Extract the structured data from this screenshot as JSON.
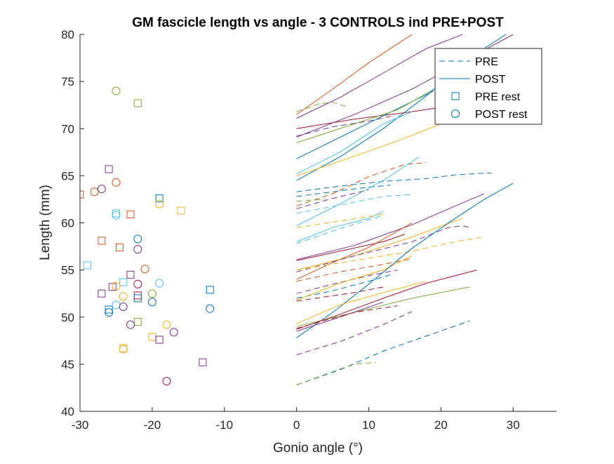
{
  "chart_data": {
    "type": "scatter",
    "title": "GM fascicle length vs angle - 3 CONTROLS ind PRE+POST",
    "xlabel": "Gonio angle (°)",
    "ylabel": "Length (mm)",
    "xlim": [
      -30,
      36
    ],
    "ylim": [
      40,
      80
    ],
    "xticks": [
      -30,
      -20,
      -10,
      0,
      10,
      20,
      30
    ],
    "yticks": [
      40,
      45,
      50,
      55,
      60,
      65,
      70,
      75,
      80
    ],
    "grid": false,
    "legend_position": "top-right",
    "legend": [
      {
        "label": "PRE",
        "style": "dashed-line"
      },
      {
        "label": "POST",
        "style": "solid-line"
      },
      {
        "label": "PRE rest",
        "style": "square-marker"
      },
      {
        "label": "POST rest",
        "style": "circle-marker"
      }
    ],
    "colors": {
      "blue": "#0072BD",
      "orange": "#D95319",
      "yellow": "#EDB120",
      "purple": "#7E2F8E",
      "green": "#77AC30",
      "cyan": "#4DBEEE",
      "red": "#A2142F"
    },
    "curves": [
      {
        "style": "solid",
        "color": "orange",
        "points": [
          [
            0,
            71.5
          ],
          [
            5,
            74.2
          ],
          [
            10,
            77.0
          ],
          [
            15,
            79.5
          ],
          [
            17,
            80.5
          ]
        ]
      },
      {
        "style": "solid",
        "color": "purple",
        "points": [
          [
            0,
            71.1
          ],
          [
            6,
            73.3
          ],
          [
            12,
            75.9
          ],
          [
            18,
            78.5
          ],
          [
            23,
            80
          ]
        ]
      },
      {
        "style": "dashed",
        "color": "green",
        "points": [
          [
            0,
            71.8
          ],
          [
            3,
            72.6
          ],
          [
            5,
            72.8
          ],
          [
            7,
            72.3
          ]
        ]
      },
      {
        "style": "solid",
        "color": "red",
        "points": [
          [
            0,
            70.0
          ],
          [
            8,
            71.0
          ],
          [
            16,
            71.8
          ],
          [
            22,
            72.5
          ]
        ]
      },
      {
        "style": "dashed",
        "color": "purple",
        "points": [
          [
            0,
            69.2
          ],
          [
            5,
            70.2
          ],
          [
            10,
            70.8
          ],
          [
            13,
            71.3
          ]
        ]
      },
      {
        "style": "solid",
        "color": "purple",
        "points": [
          [
            0,
            69.1
          ],
          [
            8,
            71.5
          ],
          [
            16,
            74.2
          ],
          [
            24,
            77.5
          ],
          [
            30,
            80
          ]
        ]
      },
      {
        "style": "solid",
        "color": "blue",
        "points": [
          [
            0,
            66.8
          ],
          [
            5,
            68.7
          ],
          [
            10,
            70.6
          ],
          [
            15,
            72.5
          ],
          [
            19,
            74.0
          ]
        ]
      },
      {
        "style": "solid",
        "color": "green",
        "points": [
          [
            0,
            68.5
          ],
          [
            8,
            70.5
          ],
          [
            14,
            72.0
          ],
          [
            20,
            74.6
          ]
        ]
      },
      {
        "style": "solid",
        "color": "blue",
        "points": [
          [
            0,
            64.5
          ],
          [
            6,
            67.0
          ],
          [
            12,
            70.0
          ],
          [
            18,
            73.5
          ],
          [
            24,
            77.5
          ],
          [
            30,
            80.5
          ]
        ]
      },
      {
        "style": "solid",
        "color": "cyan",
        "points": [
          [
            0,
            65.2
          ],
          [
            6,
            67.5
          ],
          [
            12,
            70.5
          ],
          [
            16,
            71.8
          ]
        ]
      },
      {
        "style": "solid",
        "color": "yellow",
        "points": [
          [
            0,
            65.0
          ],
          [
            7,
            66.8
          ],
          [
            14,
            68.7
          ],
          [
            20,
            70.5
          ],
          [
            25,
            72.0
          ]
        ]
      },
      {
        "style": "dashed",
        "color": "orange",
        "points": [
          [
            0,
            61.8
          ],
          [
            5,
            63.1
          ],
          [
            10,
            64.9
          ],
          [
            15,
            66.2
          ],
          [
            18,
            66.4
          ]
        ]
      },
      {
        "style": "dashed",
        "color": "blue",
        "points": [
          [
            0,
            63.3
          ],
          [
            6,
            63.9
          ],
          [
            12,
            64.4
          ],
          [
            18,
            64.7
          ],
          [
            22,
            65.1
          ],
          [
            27,
            65.3
          ]
        ]
      },
      {
        "style": "dashed",
        "color": "blue",
        "points": [
          [
            0,
            62.8
          ],
          [
            5,
            63.3
          ],
          [
            10,
            63.8
          ],
          [
            13,
            64.0
          ]
        ]
      },
      {
        "style": "dashed",
        "color": "purple",
        "points": [
          [
            0,
            61.5
          ],
          [
            5,
            62.6
          ],
          [
            10,
            63.5
          ]
        ]
      },
      {
        "style": "dashed",
        "color": "green",
        "points": [
          [
            0,
            62.3
          ],
          [
            4,
            62.5
          ]
        ]
      },
      {
        "style": "solid",
        "color": "cyan",
        "points": [
          [
            0,
            59.7
          ],
          [
            6,
            62.0
          ],
          [
            12,
            64.5
          ],
          [
            17,
            67.0
          ]
        ]
      },
      {
        "style": "dashed",
        "color": "cyan",
        "points": [
          [
            0,
            61.0
          ],
          [
            6,
            61.9
          ],
          [
            12,
            62.8
          ],
          [
            16,
            63.0
          ]
        ]
      },
      {
        "style": "solid",
        "color": "cyan",
        "points": [
          [
            0,
            58.0
          ],
          [
            5,
            59.5
          ],
          [
            10,
            60.5
          ],
          [
            12,
            61.2
          ]
        ]
      },
      {
        "style": "dashed",
        "color": "yellow",
        "points": [
          [
            0,
            59.5
          ],
          [
            6,
            60.2
          ],
          [
            12,
            60.9
          ]
        ]
      },
      {
        "style": "dashed",
        "color": "cyan",
        "points": [
          [
            0,
            57.8
          ],
          [
            6,
            59.4
          ],
          [
            12,
            60.8
          ]
        ]
      },
      {
        "style": "solid",
        "color": "purple",
        "points": [
          [
            0,
            56.1
          ],
          [
            8,
            57.6
          ],
          [
            16,
            59.8
          ],
          [
            22,
            61.8
          ],
          [
            26,
            63.1
          ]
        ]
      },
      {
        "style": "solid",
        "color": "red",
        "points": [
          [
            0,
            56.0
          ],
          [
            6,
            57.0
          ],
          [
            12,
            58.0
          ],
          [
            15,
            58.8
          ]
        ]
      },
      {
        "style": "solid",
        "color": "orange",
        "points": [
          [
            0,
            54.0
          ],
          [
            5,
            55.8
          ],
          [
            10,
            57.4
          ],
          [
            16,
            60.0
          ]
        ]
      },
      {
        "style": "solid",
        "color": "yellow",
        "points": [
          [
            0,
            55.0
          ],
          [
            8,
            56.5
          ],
          [
            16,
            58.5
          ],
          [
            23,
            60.5
          ]
        ]
      },
      {
        "style": "dashed",
        "color": "purple",
        "points": [
          [
            0,
            54.8
          ],
          [
            8,
            56.5
          ],
          [
            16,
            58.0
          ],
          [
            21,
            59.5
          ],
          [
            23,
            59.7
          ],
          [
            24,
            59.5
          ]
        ]
      },
      {
        "style": "dashed",
        "color": "yellow",
        "points": [
          [
            0,
            55.0
          ],
          [
            8,
            56.0
          ],
          [
            16,
            57.0
          ],
          [
            22,
            58.0
          ],
          [
            26,
            58.5
          ]
        ]
      },
      {
        "style": "dashed",
        "color": "orange",
        "points": [
          [
            0,
            53.8
          ],
          [
            6,
            54.8
          ],
          [
            12,
            55.6
          ],
          [
            16,
            56.2
          ]
        ]
      },
      {
        "style": "dashed",
        "color": "purple",
        "points": [
          [
            0,
            52.5
          ],
          [
            5,
            53.5
          ],
          [
            10,
            54.4
          ],
          [
            14,
            55.0
          ]
        ]
      },
      {
        "style": "dashed",
        "color": "blue",
        "points": [
          [
            0,
            52.0
          ],
          [
            5,
            52.8
          ],
          [
            10,
            53.8
          ],
          [
            13,
            54.5
          ]
        ]
      },
      {
        "style": "solid",
        "color": "yellow",
        "points": [
          [
            0,
            51.8
          ],
          [
            6,
            53.6
          ],
          [
            12,
            55.0
          ],
          [
            16,
            56.5
          ]
        ]
      },
      {
        "style": "dashed",
        "color": "red",
        "points": [
          [
            0,
            51.7
          ],
          [
            8,
            52.6
          ],
          [
            12,
            53.2
          ]
        ]
      },
      {
        "style": "solid",
        "color": "blue",
        "points": [
          [
            0,
            47.8
          ],
          [
            5,
            50.5
          ],
          [
            10,
            53.5
          ],
          [
            16,
            57.3
          ],
          [
            22,
            60.5
          ],
          [
            26,
            62.5
          ],
          [
            30,
            64.2
          ]
        ]
      },
      {
        "style": "solid",
        "color": "yellow",
        "points": [
          [
            0,
            49.3
          ],
          [
            6,
            51.3
          ],
          [
            12,
            52.6
          ],
          [
            18,
            53.8
          ]
        ]
      },
      {
        "style": "solid",
        "color": "green",
        "points": [
          [
            0,
            49.0
          ],
          [
            8,
            50.5
          ],
          [
            16,
            52.0
          ],
          [
            24,
            53.2
          ]
        ]
      },
      {
        "style": "solid",
        "color": "red",
        "points": [
          [
            0,
            48.7
          ],
          [
            6,
            50.3
          ],
          [
            12,
            52.0
          ],
          [
            18,
            53.6
          ],
          [
            25,
            55.0
          ]
        ]
      },
      {
        "style": "solid",
        "color": "purple",
        "points": [
          [
            0,
            48.5
          ],
          [
            6,
            50.0
          ],
          [
            12,
            51.6
          ]
        ]
      },
      {
        "style": "dashed",
        "color": "red",
        "points": [
          [
            0,
            48.8
          ],
          [
            8,
            50.5
          ],
          [
            14,
            51.2
          ]
        ]
      },
      {
        "style": "dashed",
        "color": "purple",
        "points": [
          [
            0,
            46.0
          ],
          [
            6,
            47.4
          ],
          [
            12,
            49.2
          ],
          [
            16,
            50.6
          ]
        ]
      },
      {
        "style": "dashed",
        "color": "blue",
        "points": [
          [
            0,
            42.8
          ],
          [
            6,
            44.4
          ],
          [
            12,
            46.4
          ],
          [
            18,
            48.0
          ],
          [
            24,
            49.6
          ]
        ]
      },
      {
        "style": "dashed",
        "color": "green",
        "points": [
          [
            0,
            42.8
          ],
          [
            5,
            44.2
          ],
          [
            8,
            45.0
          ],
          [
            11,
            45.2
          ]
        ]
      }
    ],
    "pre_rest": [
      {
        "x": -30.0,
        "y": 63.0,
        "color": "orange"
      },
      {
        "x": -29.0,
        "y": 55.5,
        "color": "cyan"
      },
      {
        "x": -27.0,
        "y": 58.1,
        "color": "orange"
      },
      {
        "x": -27.0,
        "y": 52.5,
        "color": "purple"
      },
      {
        "x": -26.0,
        "y": 65.7,
        "color": "purple"
      },
      {
        "x": -26.0,
        "y": 50.8,
        "color": "blue"
      },
      {
        "x": -25.5,
        "y": 53.2,
        "color": "purple"
      },
      {
        "x": -25.0,
        "y": 61.0,
        "color": "cyan"
      },
      {
        "x": -24.5,
        "y": 57.4,
        "color": "orange"
      },
      {
        "x": -24.0,
        "y": 53.7,
        "color": "cyan"
      },
      {
        "x": -24.0,
        "y": 46.7,
        "color": "yellow"
      },
      {
        "x": -23.0,
        "y": 60.9,
        "color": "orange"
      },
      {
        "x": -23.0,
        "y": 54.5,
        "color": "purple"
      },
      {
        "x": -22.0,
        "y": 72.7,
        "color": "green"
      },
      {
        "x": -22.0,
        "y": 52.3,
        "color": "red"
      },
      {
        "x": -22.0,
        "y": 52.0,
        "color": "blue"
      },
      {
        "x": -22.0,
        "y": 49.5,
        "color": "green"
      },
      {
        "x": -20.0,
        "y": 47.9,
        "color": "yellow"
      },
      {
        "x": -19.0,
        "y": 62.6,
        "color": "blue"
      },
      {
        "x": -19.0,
        "y": 47.6,
        "color": "purple"
      },
      {
        "x": -16.0,
        "y": 61.3,
        "color": "yellow"
      },
      {
        "x": -13.0,
        "y": 45.2,
        "color": "purple"
      },
      {
        "x": -12.0,
        "y": 52.9,
        "color": "blue"
      }
    ],
    "post_rest": [
      {
        "x": -28.0,
        "y": 63.3,
        "color": "orange"
      },
      {
        "x": -27.0,
        "y": 63.6,
        "color": "purple"
      },
      {
        "x": -26.0,
        "y": 50.5,
        "color": "blue"
      },
      {
        "x": -25.0,
        "y": 74.0,
        "color": "green"
      },
      {
        "x": -25.0,
        "y": 64.3,
        "color": "orange"
      },
      {
        "x": -25.0,
        "y": 60.8,
        "color": "cyan"
      },
      {
        "x": -25.0,
        "y": 53.3,
        "color": "yellow"
      },
      {
        "x": -25.0,
        "y": 51.3,
        "color": "cyan"
      },
      {
        "x": -24.0,
        "y": 52.2,
        "color": "yellow"
      },
      {
        "x": -24.0,
        "y": 51.1,
        "color": "purple"
      },
      {
        "x": -24.0,
        "y": 46.6,
        "color": "yellow"
      },
      {
        "x": -23.0,
        "y": 49.2,
        "color": "purple"
      },
      {
        "x": -22.0,
        "y": 58.3,
        "color": "blue"
      },
      {
        "x": -22.0,
        "y": 57.2,
        "color": "purple"
      },
      {
        "x": -22.0,
        "y": 53.5,
        "color": "red"
      },
      {
        "x": -21.0,
        "y": 55.1,
        "color": "orange"
      },
      {
        "x": -20.0,
        "y": 52.5,
        "color": "green"
      },
      {
        "x": -20.0,
        "y": 51.6,
        "color": "blue"
      },
      {
        "x": -19.0,
        "y": 62.0,
        "color": "yellow"
      },
      {
        "x": -19.0,
        "y": 53.6,
        "color": "cyan"
      },
      {
        "x": -18.0,
        "y": 49.2,
        "color": "yellow"
      },
      {
        "x": -18.0,
        "y": 43.2,
        "color": "red"
      },
      {
        "x": -17.0,
        "y": 48.4,
        "color": "purple"
      },
      {
        "x": -12.0,
        "y": 50.9,
        "color": "blue"
      }
    ]
  }
}
